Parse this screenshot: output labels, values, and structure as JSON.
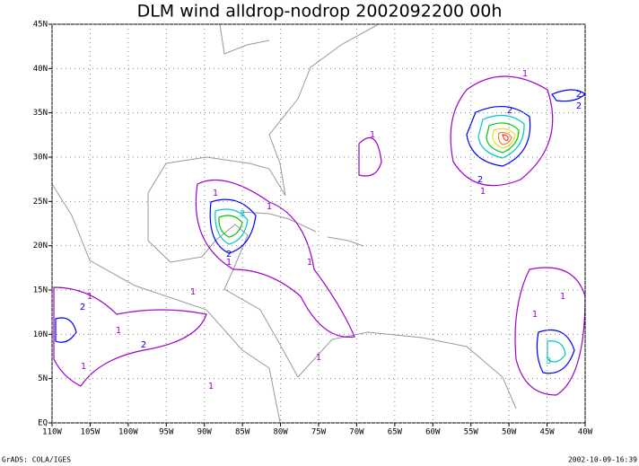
{
  "header": {
    "title": "DLM wind alldrop-nodrop 2002092200 00h"
  },
  "map": {
    "xlim": [
      -110,
      -40
    ],
    "ylim": [
      0,
      45
    ],
    "xticks": [
      {
        "value": -110,
        "label": "110W"
      },
      {
        "value": -105,
        "label": "105W"
      },
      {
        "value": -100,
        "label": "100W"
      },
      {
        "value": -95,
        "label": "95W"
      },
      {
        "value": -90,
        "label": "90W"
      },
      {
        "value": -85,
        "label": "85W"
      },
      {
        "value": -80,
        "label": "80W"
      },
      {
        "value": -75,
        "label": "75W"
      },
      {
        "value": -70,
        "label": "70W"
      },
      {
        "value": -65,
        "label": "65W"
      },
      {
        "value": -60,
        "label": "60W"
      },
      {
        "value": -55,
        "label": "55W"
      },
      {
        "value": -50,
        "label": "50W"
      },
      {
        "value": -45,
        "label": "45W"
      },
      {
        "value": -40,
        "label": "40W"
      }
    ],
    "yticks": [
      {
        "value": 0,
        "label": "EQ"
      },
      {
        "value": 5,
        "label": "5N"
      },
      {
        "value": 10,
        "label": "10N"
      },
      {
        "value": 15,
        "label": "15N"
      },
      {
        "value": 20,
        "label": "20N"
      },
      {
        "value": 25,
        "label": "25N"
      },
      {
        "value": 30,
        "label": "30N"
      },
      {
        "value": 35,
        "label": "35N"
      },
      {
        "value": 40,
        "label": "40N"
      },
      {
        "value": 45,
        "label": "45N"
      }
    ],
    "grid": true,
    "contour_labels": [
      1,
      1,
      2,
      2,
      1,
      3,
      2,
      1,
      1,
      1,
      2,
      1,
      1,
      2,
      1,
      1,
      1,
      3,
      1,
      1,
      2,
      2,
      1,
      1
    ]
  },
  "footer": {
    "left": "GrADS: COLA/IGES",
    "right": "2002-10-09-16:39"
  }
}
